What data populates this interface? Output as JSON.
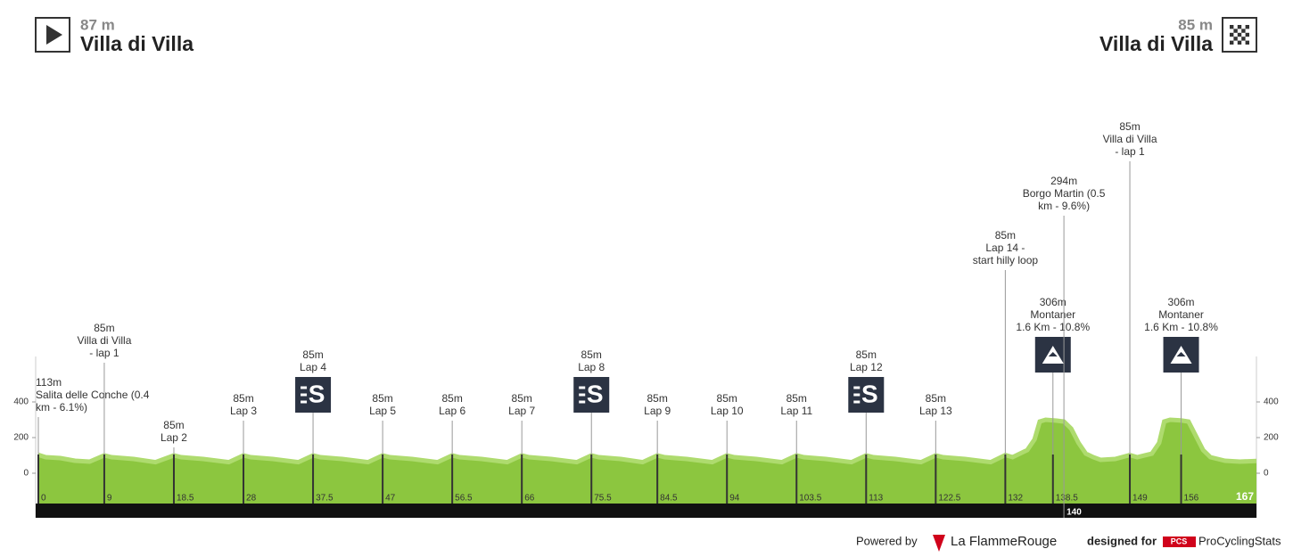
{
  "chart_data": {
    "type": "area",
    "start": {
      "altitude": "87 m",
      "name": "Villa di Villa"
    },
    "finish": {
      "altitude": "85 m",
      "name": "Villa di Villa"
    },
    "color": "#8cc63f",
    "xlim": [
      0,
      167
    ],
    "ylim": [
      -170,
      655
    ],
    "yticks": [
      0,
      200,
      400
    ],
    "x": [
      0,
      1,
      3,
      5,
      7,
      9,
      10,
      13,
      16,
      18.5,
      19.5,
      22.5,
      26,
      28,
      29,
      32,
      35.5,
      37.5,
      38.5,
      41.5,
      45,
      47,
      48,
      51,
      54.5,
      56.5,
      57.5,
      60.5,
      64,
      66,
      67,
      70,
      73.5,
      75.5,
      76.5,
      79.5,
      82.5,
      84.5,
      85.5,
      88.5,
      92,
      94,
      95,
      98,
      101.5,
      103.5,
      104.5,
      107.5,
      111,
      113,
      114,
      117,
      120.5,
      122.5,
      123.5,
      126.5,
      130,
      132,
      133,
      135,
      136,
      136.7,
      137.5,
      139,
      140,
      141,
      142,
      143,
      144,
      145,
      147,
      149,
      150,
      152,
      153,
      153.7,
      154.5,
      156,
      157,
      158,
      159,
      160,
      162,
      164,
      167
    ],
    "values": [
      113,
      100,
      95,
      80,
      75,
      110,
      100,
      90,
      72,
      110,
      100,
      90,
      72,
      110,
      100,
      90,
      72,
      110,
      100,
      90,
      72,
      110,
      100,
      90,
      72,
      110,
      100,
      90,
      72,
      110,
      100,
      90,
      72,
      110,
      100,
      90,
      72,
      110,
      100,
      90,
      72,
      110,
      100,
      90,
      72,
      110,
      100,
      90,
      72,
      110,
      100,
      90,
      72,
      110,
      100,
      90,
      72,
      112,
      100,
      140,
      200,
      300,
      310,
      305,
      300,
      260,
      180,
      120,
      100,
      85,
      90,
      112,
      100,
      120,
      180,
      300,
      310,
      306,
      300,
      220,
      140,
      100,
      80,
      75,
      80
    ],
    "markers": [
      {
        "km": 0,
        "lines": [
          "113m",
          "Salita delle Conche (0.4",
          "km - 6.1%)"
        ]
      },
      {
        "km": 9,
        "lines": [
          "85m",
          "Villa di Villa",
          "- lap 1"
        ]
      },
      {
        "km": 18.5,
        "lines": [
          "85m",
          "Lap 2"
        ]
      },
      {
        "km": 28,
        "lines": [
          "85m",
          "Lap 3"
        ]
      },
      {
        "km": 37.5,
        "lines": [
          "85m",
          "Lap 4"
        ],
        "icon": "sprint"
      },
      {
        "km": 47,
        "lines": [
          "85m",
          "Lap 5"
        ]
      },
      {
        "km": 56.5,
        "lines": [
          "85m",
          "Lap 6"
        ]
      },
      {
        "km": 66,
        "lines": [
          "85m",
          "Lap 7"
        ]
      },
      {
        "km": 75.5,
        "lines": [
          "85m",
          "Lap 8"
        ],
        "icon": "sprint"
      },
      {
        "km": 84.5,
        "lines": [
          "85m",
          "Lap 9"
        ]
      },
      {
        "km": 94,
        "lines": [
          "85m",
          "Lap 10"
        ]
      },
      {
        "km": 103.5,
        "lines": [
          "85m",
          "Lap 11"
        ]
      },
      {
        "km": 113,
        "lines": [
          "85m",
          "Lap 12"
        ],
        "icon": "sprint"
      },
      {
        "km": 122.5,
        "lines": [
          "85m",
          "Lap 13"
        ]
      },
      {
        "km": 132,
        "lines": [
          "85m",
          "Lap 14 -",
          "start hilly loop"
        ]
      },
      {
        "km": 138.5,
        "lines": [
          "306m",
          "Montaner",
          "1.6 Km - 10.8%"
        ],
        "icon": "climb"
      },
      {
        "km": 140,
        "lines": [
          "294m",
          "Borgo Martin (0.5",
          "km - 9.6%)"
        ]
      },
      {
        "km": 149,
        "lines": [
          "85m",
          "Villa di Villa",
          "- lap 1"
        ]
      },
      {
        "km": 156,
        "lines": [
          "306m",
          "Montaner",
          "1.6 Km - 10.8%"
        ],
        "icon": "climb"
      }
    ]
  },
  "footer": {
    "powered": "Powered by",
    "brand": "La FlammeRouge",
    "designed": "designed for",
    "pcs": "PCS",
    "site": "ProCyclingStats"
  }
}
